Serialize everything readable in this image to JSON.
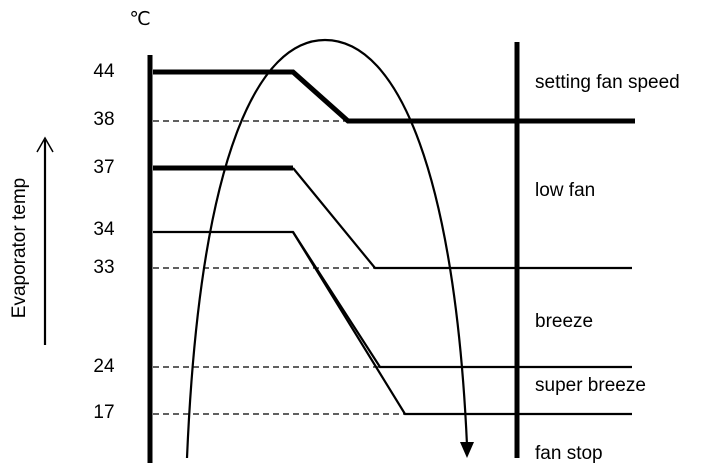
{
  "unit": "℃",
  "axis_label": "Evaporator temp",
  "levels": [
    44,
    38,
    37,
    34,
    33,
    24,
    17
  ],
  "zones": [
    "setting fan speed",
    "low fan",
    "breeze",
    "super breeze",
    "fan stop"
  ]
}
